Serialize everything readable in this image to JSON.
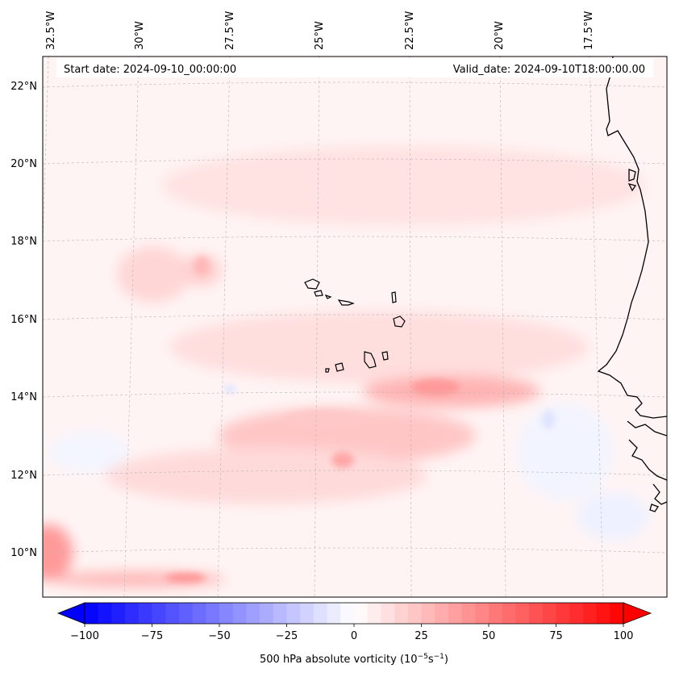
{
  "map": {
    "header": {
      "start_date": "Start date: 2024-09-10_00:00:00",
      "valid_date": "Valid_date: 2024-09-10T18:00:00.00"
    },
    "lon_labels": [
      "32.5°W",
      "30°W",
      "27.5°W",
      "25°W",
      "22.5°W",
      "20°W",
      "17.5°W"
    ],
    "lat_labels": [
      "22°N",
      "20°N",
      "18°N",
      "16°N",
      "14°N",
      "12°N",
      "10°N"
    ],
    "colorbar": {
      "title": "500 hPa absolute vorticity (10",
      "unit_sup1": "−5",
      "unit_mid": "s",
      "unit_sup2": "−1",
      "unit_end": ")",
      "ticks": [
        "−100",
        "−75",
        "−50",
        "−25",
        "0",
        "25",
        "50",
        "75",
        "100"
      ],
      "min": -100,
      "max": 100,
      "levels": 41
    },
    "colors": {
      "negative": "#0000ff",
      "zero": "#ffffff",
      "positive": "#ff0000",
      "coast": "#000000",
      "grid": "#b0b0b0"
    }
  }
}
